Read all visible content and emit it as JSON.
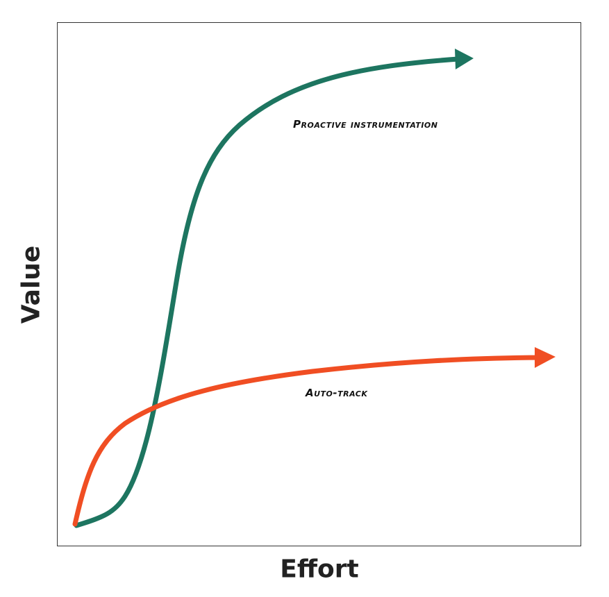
{
  "axes": {
    "x_label": "Effort",
    "y_label": "Value"
  },
  "curves": [
    {
      "label": "Proactive instrumentation",
      "color": "#1d7560"
    },
    {
      "label": "Auto-track",
      "color": "#f04e23"
    }
  ]
}
